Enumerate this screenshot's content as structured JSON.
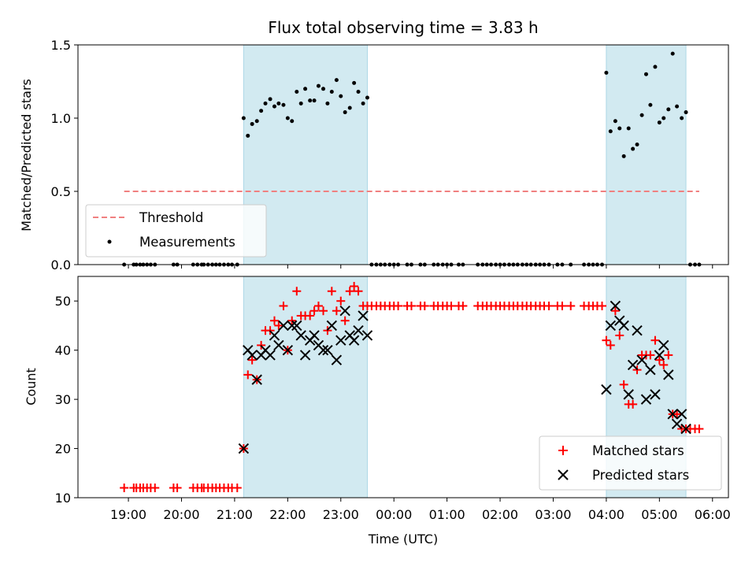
{
  "chart_data": {
    "title": "Flux total observing time = 3.83 h",
    "xlabel": "Time (UTC)",
    "x_ticks": [
      "19:00",
      "20:00",
      "21:00",
      "22:00",
      "23:00",
      "00:00",
      "01:00",
      "02:00",
      "03:00",
      "04:00",
      "05:00",
      "06:00"
    ],
    "colors": {
      "threshold": "#f08080",
      "span": "#add8e6",
      "matched": "#ff0000",
      "predicted": "#000000",
      "measurements": "#000000"
    },
    "shaded_spans_hours": [
      [
        21.17,
        23.5
      ],
      [
        28.0,
        29.5
      ]
    ],
    "top": {
      "type": "scatter",
      "ylabel": "Matched/Predicted stars",
      "ylim": [
        0,
        1.5
      ],
      "y_ticks": [
        "0.0",
        "0.5",
        "1.0",
        "1.5"
      ],
      "legend": {
        "position": "lower-left",
        "entries": [
          "Threshold",
          "Measurements"
        ]
      },
      "threshold": {
        "name": "Threshold",
        "value": 0.5,
        "x_range_hours": [
          18.92,
          29.75
        ]
      },
      "series": [
        {
          "name": "Measurements",
          "x_hours": [
            18.92,
            19.1,
            19.15,
            19.22,
            19.28,
            19.35,
            19.42,
            19.5,
            19.85,
            19.92,
            20.22,
            20.3,
            20.38,
            20.42,
            20.5,
            20.58,
            20.65,
            20.72,
            20.8,
            20.88,
            20.95,
            21.05,
            21.17,
            21.25,
            21.33,
            21.42,
            21.5,
            21.58,
            21.67,
            21.75,
            21.83,
            21.92,
            22.0,
            22.08,
            22.17,
            22.25,
            22.33,
            22.42,
            22.5,
            22.58,
            22.67,
            22.75,
            22.83,
            22.92,
            23.0,
            23.08,
            23.17,
            23.25,
            23.33,
            23.42,
            23.5,
            23.58,
            23.67,
            23.75,
            23.83,
            23.92,
            24.0,
            24.08,
            24.25,
            24.33,
            24.5,
            24.58,
            24.75,
            24.83,
            24.92,
            25.0,
            25.08,
            25.22,
            25.3,
            25.58,
            25.67,
            25.75,
            25.83,
            25.92,
            26.0,
            26.08,
            26.17,
            26.25,
            26.33,
            26.42,
            26.5,
            26.58,
            26.67,
            26.75,
            26.83,
            26.92,
            27.08,
            27.17,
            27.33,
            27.58,
            27.67,
            27.75,
            27.83,
            27.92,
            28.0,
            28.08,
            28.17,
            28.25,
            28.33,
            28.42,
            28.5,
            28.58,
            28.67,
            28.75,
            28.83,
            28.92,
            29.0,
            29.08,
            29.17,
            29.25,
            29.33,
            29.42,
            29.5,
            29.58,
            29.67,
            29.75
          ],
          "y": [
            0,
            0,
            0,
            0,
            0,
            0,
            0,
            0,
            0,
            0,
            0,
            0,
            0,
            0,
            0,
            0,
            0,
            0,
            0,
            0,
            0,
            0,
            1.0,
            0.88,
            0.96,
            0.98,
            1.05,
            1.1,
            1.13,
            1.08,
            1.1,
            1.09,
            1.0,
            0.98,
            1.18,
            1.1,
            1.2,
            1.12,
            1.12,
            1.22,
            1.2,
            1.1,
            1.18,
            1.26,
            1.15,
            1.04,
            1.07,
            1.24,
            1.18,
            1.1,
            1.14,
            0,
            0,
            0,
            0,
            0,
            0,
            0,
            0,
            0,
            0,
            0,
            0,
            0,
            0,
            0,
            0,
            0,
            0,
            0,
            0,
            0,
            0,
            0,
            0,
            0,
            0,
            0,
            0,
            0,
            0,
            0,
            0,
            0,
            0,
            0,
            0,
            0,
            0,
            0,
            0,
            0,
            0,
            0,
            1.31,
            0.91,
            0.98,
            0.93,
            0.74,
            0.93,
            0.79,
            0.82,
            1.02,
            1.3,
            1.09,
            1.35,
            0.97,
            1.0,
            1.06,
            1.44,
            1.08,
            1.0,
            1.04,
            0,
            0,
            0
          ]
        }
      ]
    },
    "bottom": {
      "type": "scatter",
      "ylabel": "Count",
      "ylim": [
        10,
        55
      ],
      "y_ticks": [
        "10",
        "20",
        "30",
        "40",
        "50"
      ],
      "legend": {
        "position": "lower-right",
        "entries": [
          "Matched stars",
          "Predicted stars"
        ]
      },
      "series": [
        {
          "name": "Matched stars",
          "marker": "+",
          "x_hours": [
            18.92,
            19.1,
            19.15,
            19.22,
            19.28,
            19.35,
            19.42,
            19.5,
            19.85,
            19.92,
            20.22,
            20.3,
            20.38,
            20.42,
            20.5,
            20.58,
            20.65,
            20.72,
            20.8,
            20.88,
            20.95,
            21.05,
            21.17,
            21.25,
            21.33,
            21.42,
            21.5,
            21.58,
            21.67,
            21.75,
            21.83,
            21.92,
            22.0,
            22.08,
            22.17,
            22.25,
            22.33,
            22.42,
            22.5,
            22.58,
            22.67,
            22.75,
            22.83,
            22.92,
            23.0,
            23.08,
            23.17,
            23.25,
            23.33,
            23.42,
            23.5,
            23.58,
            23.67,
            23.75,
            23.83,
            23.92,
            24.0,
            24.08,
            24.25,
            24.33,
            24.5,
            24.58,
            24.75,
            24.83,
            24.92,
            25.0,
            25.08,
            25.22,
            25.3,
            25.58,
            25.67,
            25.75,
            25.83,
            25.92,
            26.0,
            26.08,
            26.17,
            26.25,
            26.33,
            26.42,
            26.5,
            26.58,
            26.67,
            26.75,
            26.83,
            26.92,
            27.08,
            27.17,
            27.33,
            27.58,
            27.67,
            27.75,
            27.83,
            27.92,
            28.0,
            28.08,
            28.17,
            28.25,
            28.33,
            28.42,
            28.5,
            28.58,
            28.67,
            28.75,
            28.83,
            28.92,
            29.0,
            29.08,
            29.17,
            29.25,
            29.33,
            29.42,
            29.5,
            29.58,
            29.67,
            29.75
          ],
          "y": [
            12,
            12,
            12,
            12,
            12,
            12,
            12,
            12,
            12,
            12,
            12,
            12,
            12,
            12,
            12,
            12,
            12,
            12,
            12,
            12,
            12,
            12,
            20,
            35,
            38,
            34,
            41,
            44,
            44,
            46,
            45,
            49,
            40,
            46,
            52,
            47,
            47,
            47,
            48,
            49,
            48,
            44,
            52,
            48,
            50,
            46,
            52,
            53,
            52,
            49,
            49,
            49,
            49,
            49,
            49,
            49,
            49,
            49,
            49,
            49,
            49,
            49,
            49,
            49,
            49,
            49,
            49,
            49,
            49,
            49,
            49,
            49,
            49,
            49,
            49,
            49,
            49,
            49,
            49,
            49,
            49,
            49,
            49,
            49,
            49,
            49,
            49,
            49,
            49,
            49,
            49,
            49,
            49,
            49,
            42,
            41,
            48,
            43,
            33,
            29,
            29,
            36,
            39,
            39,
            39,
            42,
            38,
            37,
            39,
            27,
            27,
            24,
            24,
            24,
            24,
            24
          ]
        },
        {
          "name": "Predicted stars",
          "marker": "x",
          "x_hours": [
            21.17,
            21.25,
            21.33,
            21.42,
            21.5,
            21.58,
            21.67,
            21.75,
            21.83,
            21.92,
            22.0,
            22.08,
            22.17,
            22.25,
            22.33,
            22.42,
            22.5,
            22.58,
            22.67,
            22.75,
            22.83,
            22.92,
            23.0,
            23.08,
            23.17,
            23.25,
            23.33,
            23.42,
            23.5,
            28.0,
            28.08,
            28.17,
            28.25,
            28.33,
            28.42,
            28.5,
            28.58,
            28.67,
            28.75,
            28.83,
            28.92,
            29.0,
            29.08,
            29.17,
            29.25,
            29.33,
            29.42,
            29.5
          ],
          "y": [
            20,
            40,
            39,
            34,
            39,
            40,
            39,
            43,
            41,
            45,
            40,
            45,
            45,
            43,
            39,
            42,
            43,
            41,
            40,
            40,
            45,
            38,
            42,
            48,
            43,
            42,
            44,
            47,
            43,
            32,
            45,
            49,
            46,
            45,
            31,
            37,
            44,
            38,
            30,
            36,
            31,
            39,
            41,
            35,
            27,
            25,
            27,
            24
          ]
        }
      ]
    }
  }
}
